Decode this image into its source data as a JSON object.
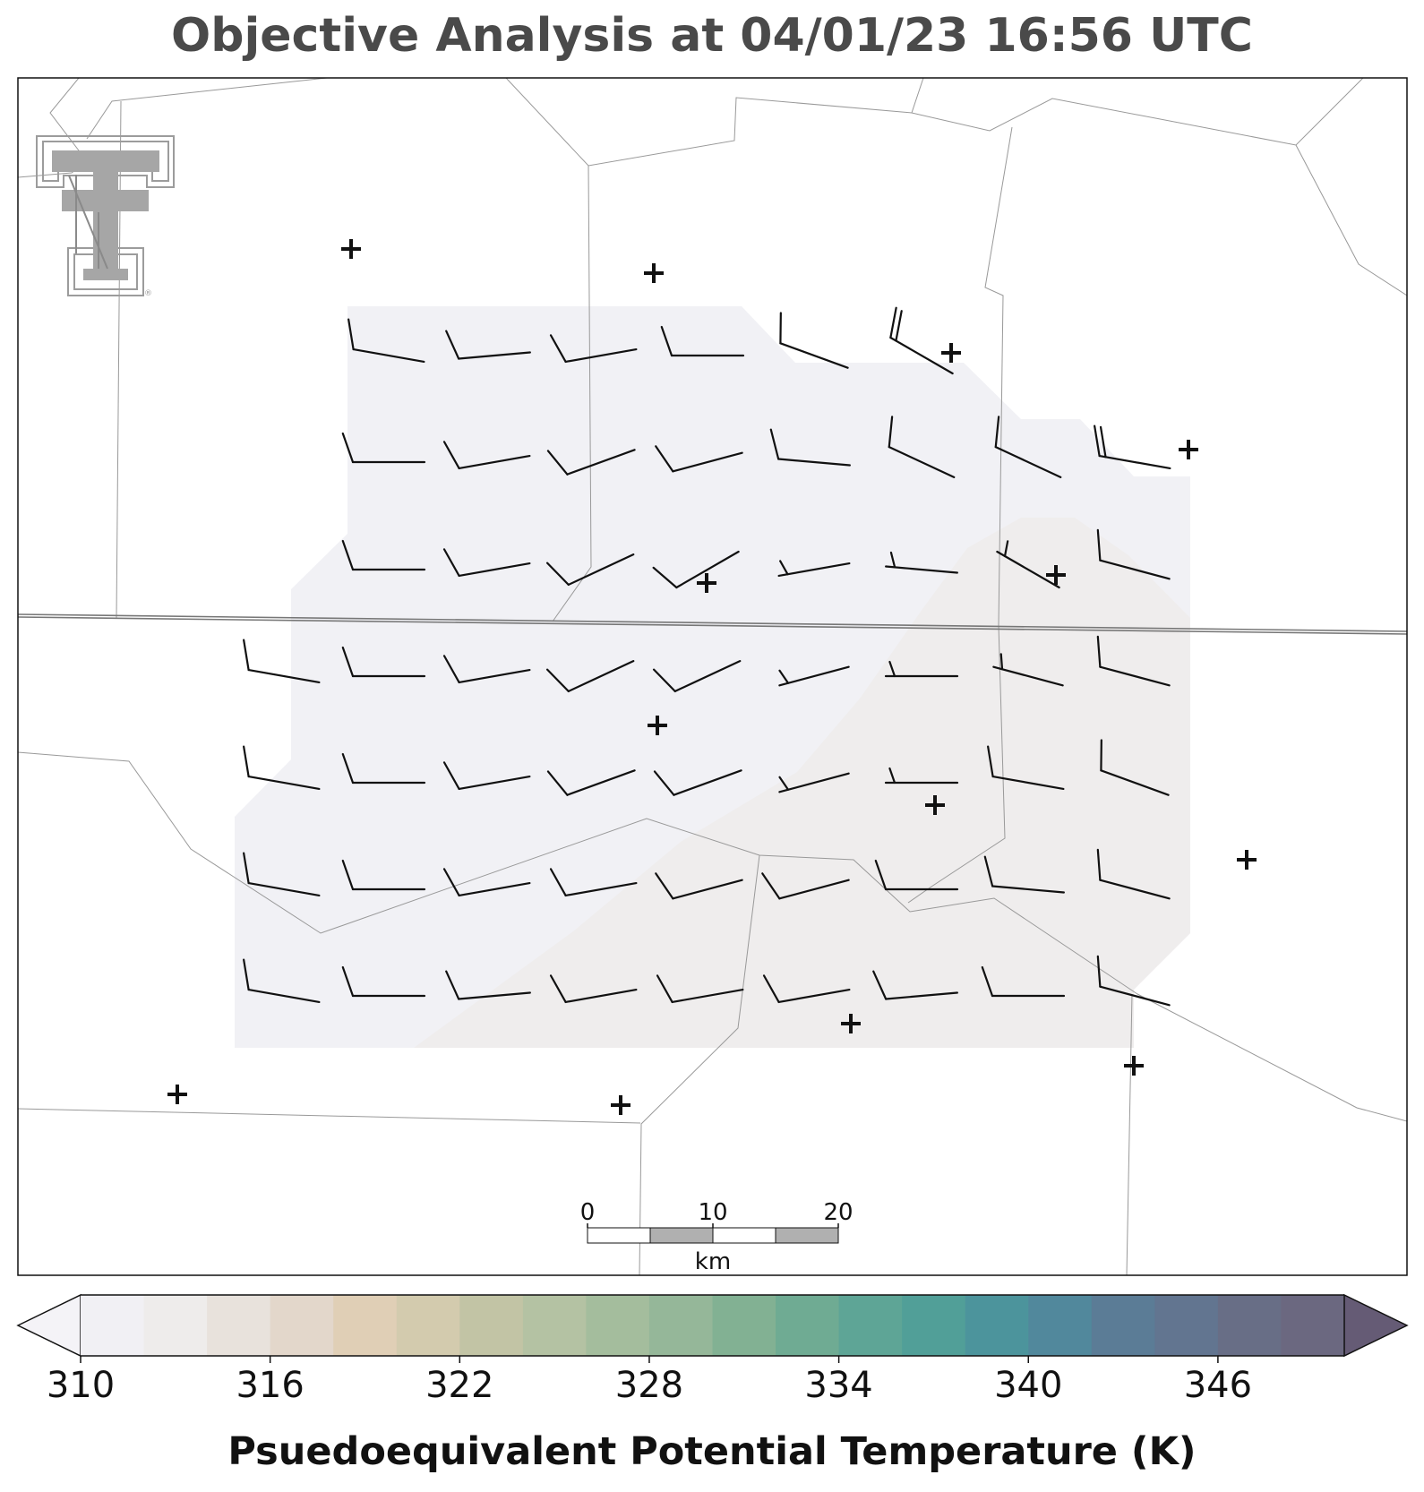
{
  "title": "Objective Analysis at 04/01/23 16:56 UTC",
  "colorbar": {
    "label": "Psuedoequivalent Potential Temperature (K)",
    "ticks": [
      "310",
      "316",
      "322",
      "328",
      "334",
      "340",
      "346"
    ],
    "min": 310,
    "max": 350,
    "step": 2,
    "extend": "both",
    "colors": [
      "#f1f0f4",
      "#eeeceb",
      "#e8e2dc",
      "#e3d7cb",
      "#e0cfb6",
      "#d3cbae",
      "#c2c4a5",
      "#b4c2a3",
      "#a4bd9d",
      "#95b799",
      "#82b193",
      "#6fab93",
      "#5ea596",
      "#519f98",
      "#4c949c",
      "#51889c",
      "#5b7c96",
      "#627590",
      "#686e86",
      "#6b6880"
    ],
    "under_color": "#f4f3f7",
    "over_color": "#655b75"
  },
  "scalebar": {
    "ticks": [
      "0",
      "10",
      "20"
    ],
    "unit": "km"
  },
  "logo": {
    "name": "Texas Tech Double T",
    "mark": "®"
  },
  "analysis_field": {
    "variable": "theta-e",
    "unit": "K",
    "regions": [
      {
        "name": "theta-e-310-312",
        "value_range": [
          310,
          312
        ],
        "color": "#f1f1f5"
      },
      {
        "name": "theta-e-312-314",
        "value_range": [
          312,
          314
        ],
        "color": "#efeded"
      }
    ]
  },
  "wind_barbs": {
    "columns": 9,
    "rows": 7,
    "note_visible": "barbs on analysis grid",
    "grid": [
      [
        null,
        {
          "dir": 280,
          "half": true
        },
        {
          "dir": 265,
          "half": true
        },
        {
          "dir": 260,
          "half": true
        },
        {
          "dir": 270,
          "half": true
        },
        {
          "dir": 290,
          "half": true
        },
        {
          "dir": 300,
          "full": 2
        },
        null,
        null
      ],
      [
        null,
        {
          "dir": 270,
          "half": true
        },
        {
          "dir": 260,
          "half": true
        },
        {
          "dir": 250,
          "half": true
        },
        {
          "dir": 255,
          "half": true
        },
        {
          "dir": 275,
          "half": true
        },
        {
          "dir": 295,
          "half": true
        },
        {
          "dir": 295,
          "half": true
        },
        {
          "dir": 280,
          "full": 2
        }
      ],
      [
        null,
        {
          "dir": 270,
          "half": true
        },
        {
          "dir": 260,
          "half": true
        },
        {
          "dir": 245,
          "half": true
        },
        {
          "dir": 240,
          "half": true
        },
        {
          "dir": 260,
          "short": true
        },
        {
          "dir": 275,
          "short": true
        },
        {
          "dir": 300,
          "short": true
        },
        {
          "dir": 285,
          "half": true
        }
      ],
      [
        {
          "dir": 280,
          "half": true
        },
        {
          "dir": 270,
          "half": true
        },
        {
          "dir": 260,
          "half": true
        },
        {
          "dir": 245,
          "half": true
        },
        {
          "dir": 245,
          "half": true
        },
        {
          "dir": 255,
          "short": true
        },
        {
          "dir": 270,
          "short": true
        },
        {
          "dir": 285,
          "short": true
        },
        {
          "dir": 285,
          "half": true
        }
      ],
      [
        {
          "dir": 280,
          "half": true
        },
        {
          "dir": 270,
          "half": true
        },
        {
          "dir": 260,
          "half": true
        },
        {
          "dir": 250,
          "half": true
        },
        {
          "dir": 250,
          "half": true
        },
        {
          "dir": 255,
          "short": true
        },
        {
          "dir": 270,
          "short": true
        },
        {
          "dir": 280,
          "half": true
        },
        {
          "dir": 290,
          "half": true
        }
      ],
      [
        {
          "dir": 280,
          "half": true
        },
        {
          "dir": 270,
          "half": true
        },
        {
          "dir": 260,
          "half": true
        },
        {
          "dir": 260,
          "half": true
        },
        {
          "dir": 255,
          "half": true
        },
        {
          "dir": 255,
          "half": true
        },
        {
          "dir": 270,
          "half": true
        },
        {
          "dir": 275,
          "half": true
        },
        {
          "dir": 285,
          "half": true
        }
      ],
      [
        {
          "dir": 280,
          "half": true
        },
        {
          "dir": 270,
          "half": true
        },
        {
          "dir": 265,
          "half": true
        },
        {
          "dir": 260,
          "half": true
        },
        {
          "dir": 260,
          "half": true
        },
        {
          "dir": 260,
          "half": true
        },
        {
          "dir": 265,
          "half": true
        },
        {
          "dir": 270,
          "half": true
        },
        {
          "dir": 285,
          "half": true
        }
      ]
    ]
  },
  "stations": [
    {
      "name": "station-1"
    },
    {
      "name": "station-2"
    },
    {
      "name": "station-3"
    },
    {
      "name": "station-4"
    },
    {
      "name": "station-5"
    },
    {
      "name": "station-6"
    },
    {
      "name": "station-7"
    },
    {
      "name": "station-8"
    },
    {
      "name": "station-9"
    },
    {
      "name": "station-10"
    },
    {
      "name": "station-11"
    },
    {
      "name": "station-12"
    },
    {
      "name": "station-13"
    },
    {
      "name": "station-14"
    }
  ]
}
